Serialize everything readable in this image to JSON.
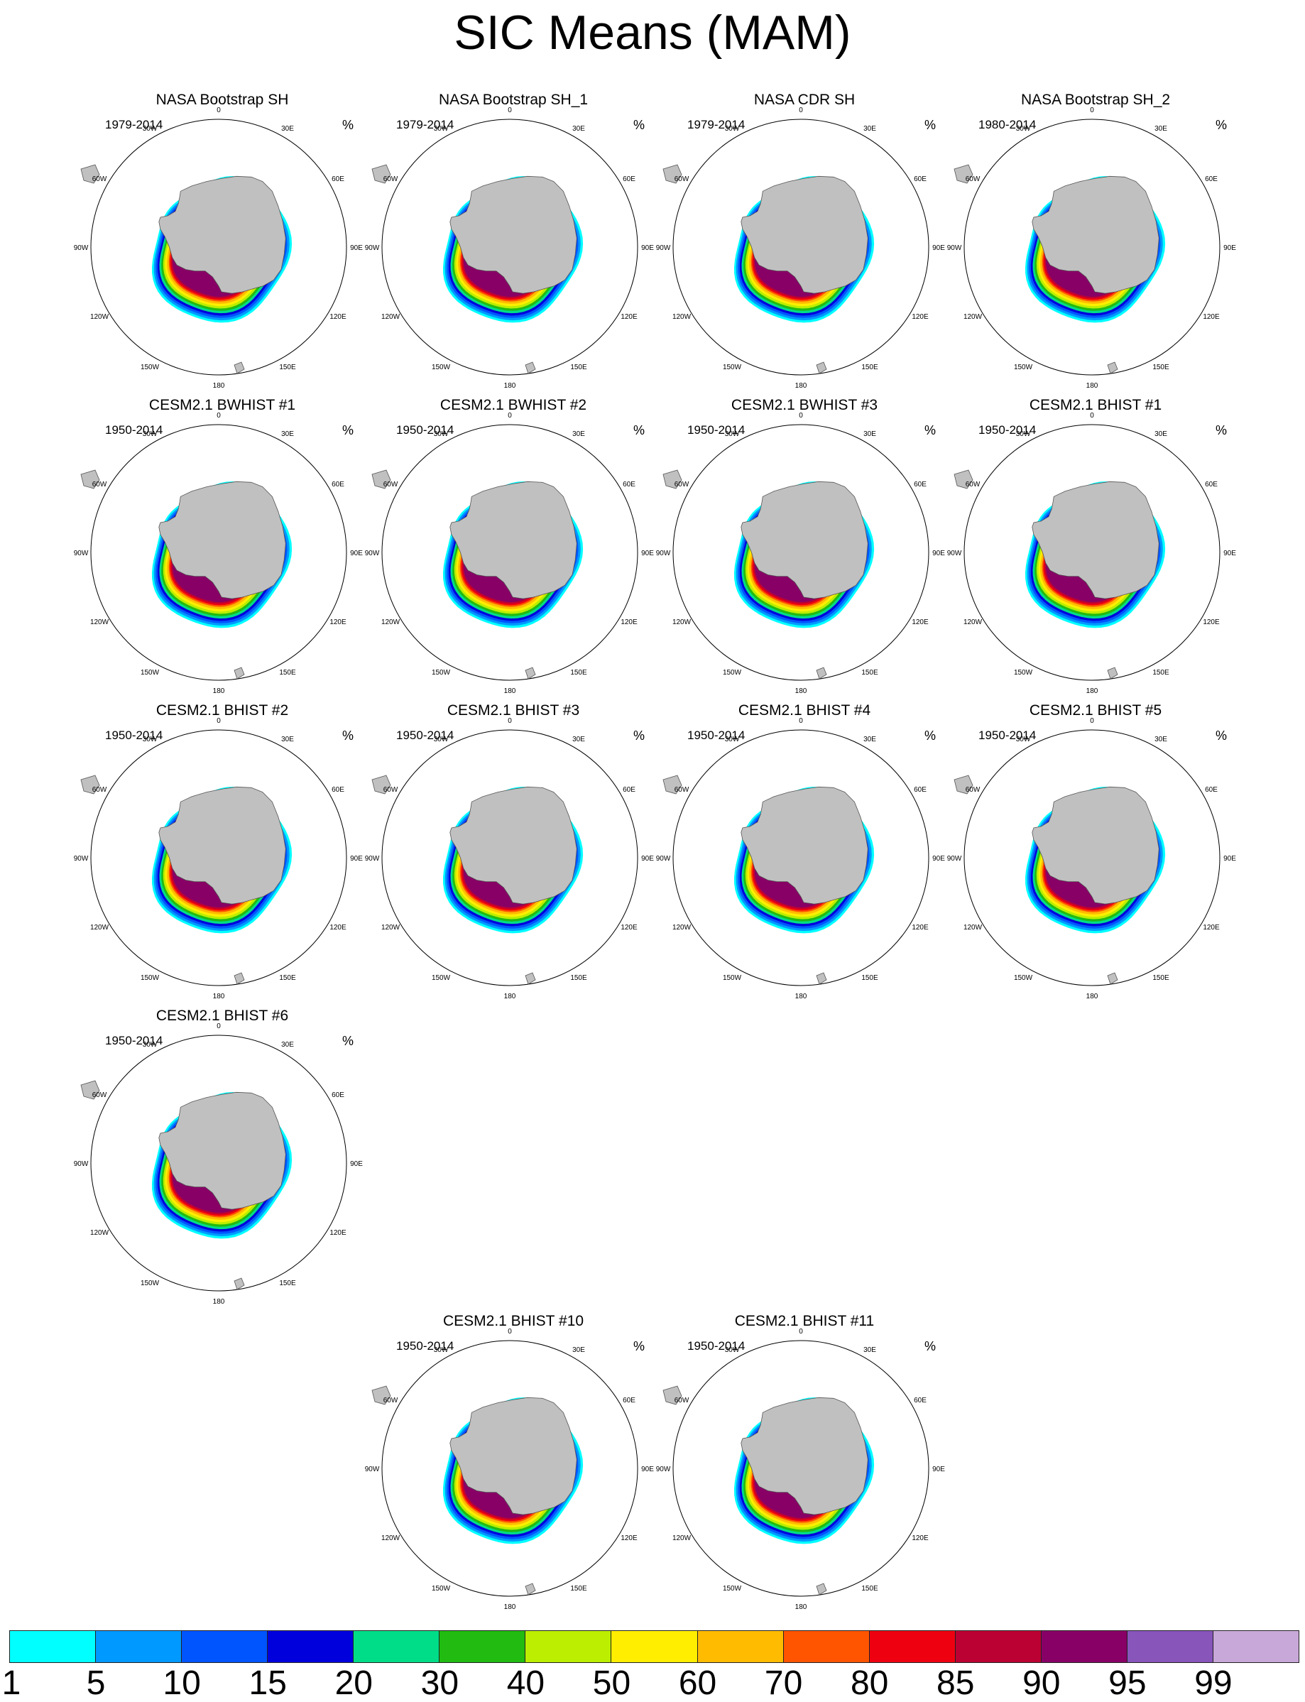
{
  "title": "SIC Means (MAM)",
  "unit": "%",
  "longitude_labels": [
    "0",
    "30E",
    "60E",
    "90E",
    "120E",
    "150E",
    "180",
    "150W",
    "120W",
    "90W",
    "60W",
    "30W"
  ],
  "panels": [
    {
      "title": "NASA Bootstrap SH",
      "period": "1979-2014"
    },
    {
      "title": "NASA Bootstrap SH_1",
      "period": "1979-2014"
    },
    {
      "title": "NASA CDR SH",
      "period": "1979-2014"
    },
    {
      "title": "NASA Bootstrap SH_2",
      "period": "1980-2014"
    },
    {
      "title": "CESM2.1 BWHIST #1",
      "period": "1950-2014"
    },
    {
      "title": "CESM2.1 BWHIST #2",
      "period": "1950-2014"
    },
    {
      "title": "CESM2.1 BWHIST #3",
      "period": "1950-2014"
    },
    {
      "title": "CESM2.1 BHIST #1",
      "period": "1950-2014"
    },
    {
      "title": "CESM2.1 BHIST #2",
      "period": "1950-2014"
    },
    {
      "title": "CESM2.1 BHIST #3",
      "period": "1950-2014"
    },
    {
      "title": "CESM2.1 BHIST #4",
      "period": "1950-2014"
    },
    {
      "title": "CESM2.1 BHIST #5",
      "period": "1950-2014"
    },
    {
      "title": "CESM2.1 BHIST #6",
      "period": "1950-2014"
    },
    {
      "title": "CESM2.1 BHIST #10",
      "period": "1950-2014"
    },
    {
      "title": "CESM2.1 BHIST #11",
      "period": "1950-2014"
    }
  ],
  "colorbar": {
    "labels": [
      "1",
      "5",
      "10",
      "15",
      "20",
      "30",
      "40",
      "50",
      "60",
      "70",
      "80",
      "85",
      "90",
      "95",
      "99"
    ],
    "colors": [
      "#00ffff",
      "#0099ff",
      "#0055ff",
      "#0000dd",
      "#00dd88",
      "#22bb11",
      "#bbee00",
      "#ffee00",
      "#ffbb00",
      "#ff5500",
      "#ee0011",
      "#bb0033",
      "#880066",
      "#8855bb",
      "#c8a8d8"
    ]
  },
  "colors": {
    "land": "#c0c0c0",
    "land_edge": "#555555",
    "ocean": "#ffffff",
    "map_border": "#000000"
  }
}
